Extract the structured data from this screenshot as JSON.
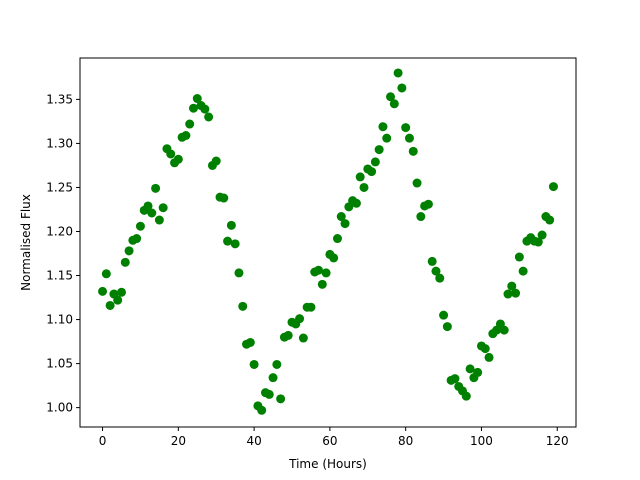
{
  "chart_data": {
    "type": "scatter",
    "x_label": "Time (Hours)",
    "y_label": "Normalised Flux",
    "color": "#008000",
    "grid": false,
    "xlim": [
      -5.95,
      124.95
    ],
    "ylim": [
      0.978,
      1.397
    ],
    "xticks": [
      0,
      20,
      40,
      60,
      80,
      100,
      120
    ],
    "yticks": [
      {
        "value": 1,
        "label": "1.00"
      },
      1.05,
      {
        "value": 1.1,
        "label": "1.10"
      },
      1.15,
      {
        "value": 1.2,
        "label": "1.20"
      },
      1.25,
      {
        "value": 1.3,
        "label": "1.30"
      },
      1.35
    ],
    "x": [
      0,
      1,
      2,
      3,
      4,
      5,
      6,
      7,
      8,
      9,
      10,
      11,
      12,
      13,
      14,
      15,
      16,
      17,
      18,
      19,
      20,
      21,
      22,
      23,
      24,
      25,
      26,
      27,
      28,
      29,
      30,
      31,
      32,
      33,
      34,
      35,
      36,
      37,
      38,
      39,
      40,
      41,
      42,
      43,
      44,
      45,
      46,
      47,
      48,
      49,
      50,
      51,
      52,
      53,
      54,
      55,
      56,
      57,
      58,
      59,
      60,
      61,
      62,
      63,
      64,
      65,
      66,
      67,
      68,
      69,
      70,
      71,
      72,
      73,
      74,
      75,
      76,
      77,
      78,
      79,
      80,
      81,
      82,
      83,
      84,
      85,
      86,
      87,
      88,
      89,
      90,
      91,
      92,
      93,
      94,
      95,
      96,
      97,
      98,
      99,
      100,
      101,
      102,
      103,
      104,
      105,
      106,
      107,
      108,
      109,
      110,
      111,
      112,
      113,
      114,
      115,
      116,
      117,
      118,
      119
    ],
    "values": [
      1.132,
      1.152,
      1.116,
      1.129,
      1.122,
      1.131,
      1.165,
      1.178,
      1.19,
      1.192,
      1.206,
      1.224,
      1.229,
      1.221,
      1.249,
      1.213,
      1.227,
      1.294,
      1.288,
      1.278,
      1.282,
      1.307,
      1.309,
      1.322,
      1.34,
      1.351,
      1.343,
      1.339,
      1.33,
      1.275,
      1.28,
      1.239,
      1.238,
      1.189,
      1.207,
      1.186,
      1.153,
      1.115,
      1.072,
      1.074,
      1.049,
      1.002,
      0.997,
      1.017,
      1.015,
      1.034,
      1.049,
      1.01,
      1.08,
      1.082,
      1.097,
      1.095,
      1.101,
      1.079,
      1.114,
      1.114,
      1.154,
      1.156,
      1.14,
      1.153,
      1.174,
      1.17,
      1.192,
      1.217,
      1.209,
      1.228,
      1.235,
      1.232,
      1.262,
      1.25,
      1.271,
      1.268,
      1.279,
      1.293,
      1.319,
      1.306,
      1.353,
      1.345,
      1.38,
      1.363,
      1.318,
      1.306,
      1.291,
      1.255,
      1.217,
      1.229,
      1.231,
      1.166,
      1.155,
      1.147,
      1.105,
      1.092,
      1.031,
      1.033,
      1.024,
      1.019,
      1.013,
      1.044,
      1.034,
      1.04,
      1.07,
      1.067,
      1.057,
      1.084,
      1.088,
      1.095,
      1.088,
      1.129,
      1.138,
      1.13,
      1.171,
      1.155,
      1.189,
      1.193,
      1.189,
      1.188,
      1.196,
      1.217,
      1.213,
      1.251
    ]
  }
}
